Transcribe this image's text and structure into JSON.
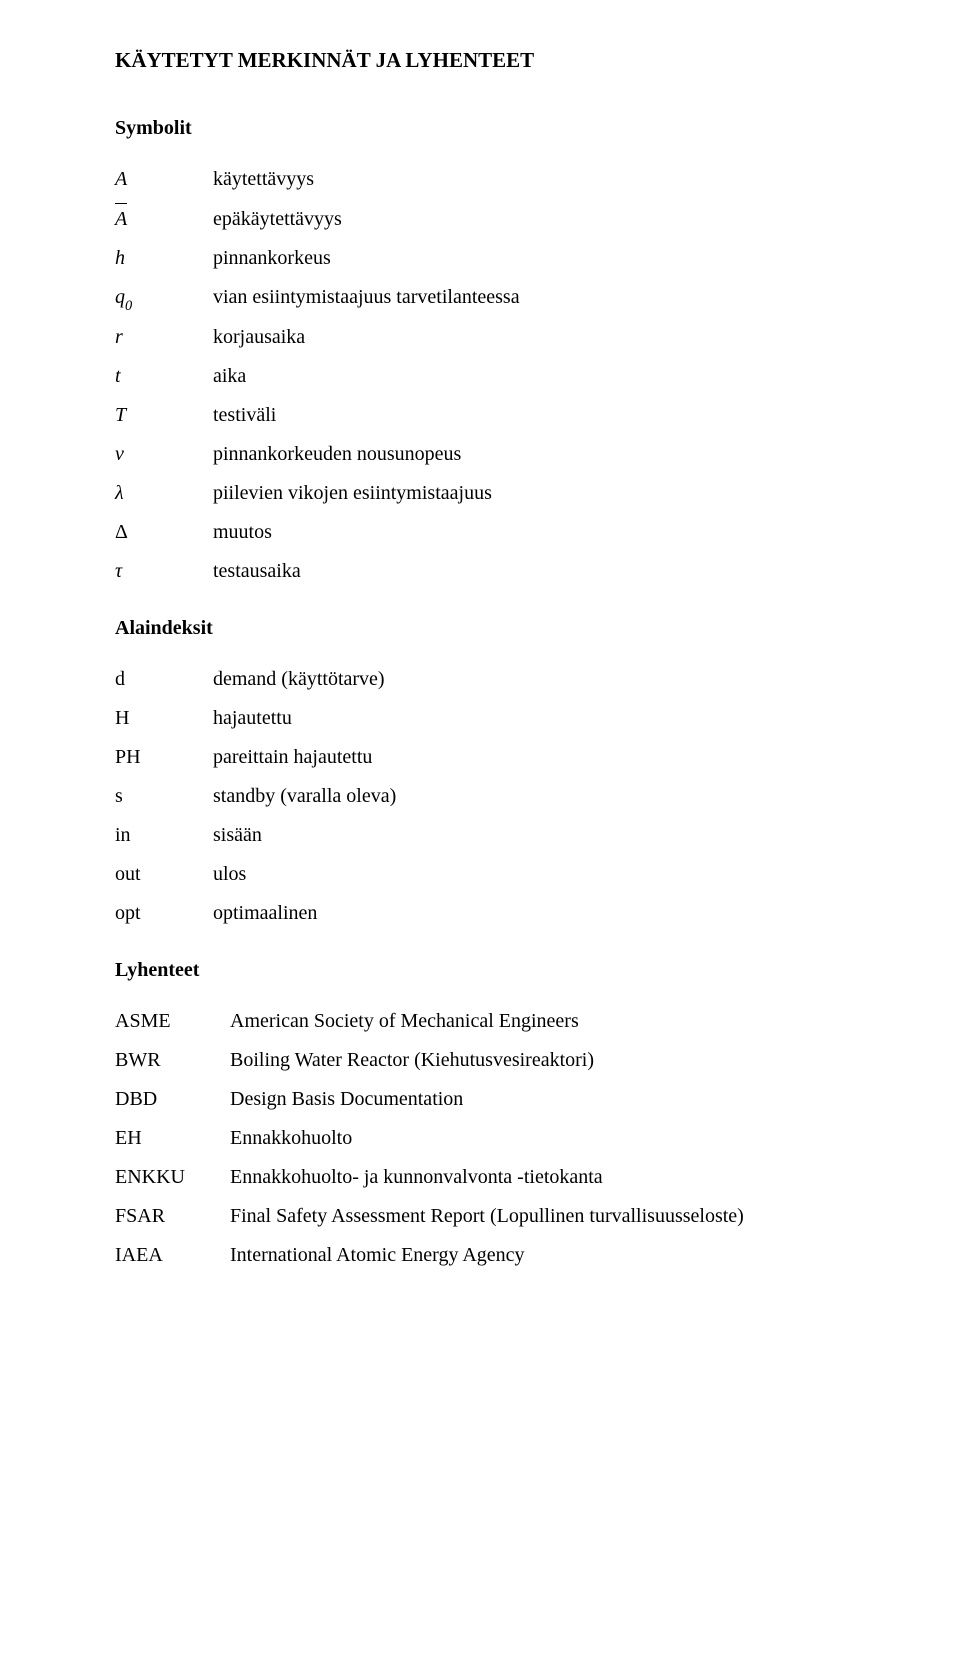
{
  "title": "KÄYTETYT MERKINNÄT JA LYHENTEET",
  "sections": {
    "symbols_heading": "Symbolit",
    "subindices_heading": "Alaindeksit",
    "abbrev_heading": "Lyhenteet"
  },
  "symbols": {
    "A": {
      "sym": "A",
      "desc": "käytettävyys"
    },
    "Abar": {
      "sym": "A",
      "desc": "epäkäytettävyys"
    },
    "h": {
      "sym": "h",
      "desc": "pinnankorkeus"
    },
    "q0": {
      "sym_main": "q",
      "sym_sub": "0",
      "desc": "vian esiintymistaajuus tarvetilanteessa"
    },
    "r": {
      "sym": "r",
      "desc": "korjausaika"
    },
    "t": {
      "sym": "t",
      "desc": "aika"
    },
    "T": {
      "sym": "T",
      "desc": "testiväli"
    },
    "v": {
      "sym": "v",
      "desc": "pinnankorkeuden nousunopeus"
    },
    "lambda": {
      "sym": "λ",
      "desc": "piilevien vikojen esiintymistaajuus"
    },
    "Delta": {
      "sym": "Δ",
      "desc": "muutos"
    },
    "tau": {
      "sym": "τ",
      "desc": "testausaika"
    }
  },
  "subindices": {
    "d": {
      "sym": "d",
      "desc": "demand (käyttötarve)"
    },
    "H": {
      "sym": "H",
      "desc": "hajautettu"
    },
    "PH": {
      "sym": "PH",
      "desc": "pareittain hajautettu"
    },
    "s": {
      "sym": "s",
      "desc": "standby (varalla oleva)"
    },
    "in": {
      "sym": "in",
      "desc": "sisään"
    },
    "out": {
      "sym": "out",
      "desc": "ulos"
    },
    "opt": {
      "sym": "opt",
      "desc": "optimaalinen"
    }
  },
  "abbrev": {
    "ASME": {
      "abbr": "ASME",
      "desc": "American Society of Mechanical Engineers"
    },
    "BWR": {
      "abbr": "BWR",
      "desc": "Boiling Water Reactor (Kiehutusvesireaktori)"
    },
    "DBD": {
      "abbr": "DBD",
      "desc": "Design Basis Documentation"
    },
    "EH": {
      "abbr": "EH",
      "desc": "Ennakkohuolto"
    },
    "ENKKU": {
      "abbr": "ENKKU",
      "desc": "Ennakkohuolto- ja kunnonvalvonta -tietokanta"
    },
    "FSAR": {
      "abbr": "FSAR",
      "desc": "Final Safety Assessment Report (Lopullinen turvallisuusseloste)"
    },
    "IAEA": {
      "abbr": "IAEA",
      "desc": "International Atomic Energy Agency"
    }
  }
}
